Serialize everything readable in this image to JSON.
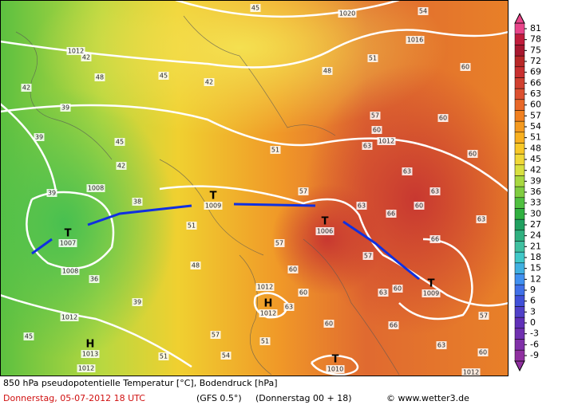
{
  "map": {
    "systems": [
      {
        "symbol": "T",
        "pressure": "1009"
      },
      {
        "symbol": "T",
        "pressure": "1007"
      },
      {
        "symbol": "T",
        "pressure": "1006"
      },
      {
        "symbol": "T",
        "pressure": "1009"
      },
      {
        "symbol": "H",
        "pressure": "1012"
      },
      {
        "symbol": "H",
        "pressure": "1013"
      },
      {
        "symbol": "T",
        "pressure": "1010"
      }
    ],
    "isobar_labels": [
      "1020",
      "1016",
      "1012",
      "1012",
      "1008",
      "1008",
      "1012",
      "1012",
      "1012",
      "1012"
    ],
    "temperature_labels": [
      "45",
      "42",
      "48",
      "45",
      "42",
      "39",
      "39",
      "45",
      "42",
      "39",
      "38",
      "51",
      "48",
      "51",
      "57",
      "51",
      "48",
      "57",
      "60",
      "63",
      "63",
      "63",
      "60",
      "66",
      "63",
      "60",
      "63",
      "66",
      "60",
      "63",
      "60",
      "60",
      "57",
      "60",
      "57",
      "60",
      "66",
      "63",
      "60",
      "57",
      "36",
      "39",
      "45",
      "51",
      "57",
      "54",
      "51",
      "63",
      "60",
      "54",
      "42"
    ],
    "colorbar": {
      "ticks": [
        81,
        78,
        75,
        72,
        69,
        66,
        63,
        60,
        57,
        54,
        51,
        48,
        45,
        42,
        39,
        36,
        33,
        30,
        27,
        24,
        21,
        18,
        15,
        12,
        9,
        6,
        3,
        0,
        -3,
        -6,
        -9
      ],
      "colors": [
        "#e8458a",
        "#c01c3c",
        "#a81830",
        "#b82828",
        "#c83030",
        "#d04030",
        "#dc5030",
        "#e86828",
        "#f08020",
        "#f49a20",
        "#f8b020",
        "#f8c828",
        "#f0d838",
        "#d8e040",
        "#a8d840",
        "#80cc40",
        "#50c040",
        "#30b040",
        "#20a060",
        "#30b080",
        "#40c0a0",
        "#40c8c8",
        "#40b0e0",
        "#4090f0",
        "#4070e8",
        "#4050d8",
        "#5040c8",
        "#6030b8",
        "#7030b0",
        "#8030a8",
        "#9030a0"
      ]
    }
  },
  "footer": {
    "title": "850 hPa pseudopotentielle Temperatur [°C], Bodendruck [hPa]",
    "date": "Donnerstag, 05-07-2012   18 UTC",
    "model": "(GFS 0.5°)",
    "run": "(Donnerstag 00 + 18)",
    "credit": "© www.wetter3.de"
  }
}
